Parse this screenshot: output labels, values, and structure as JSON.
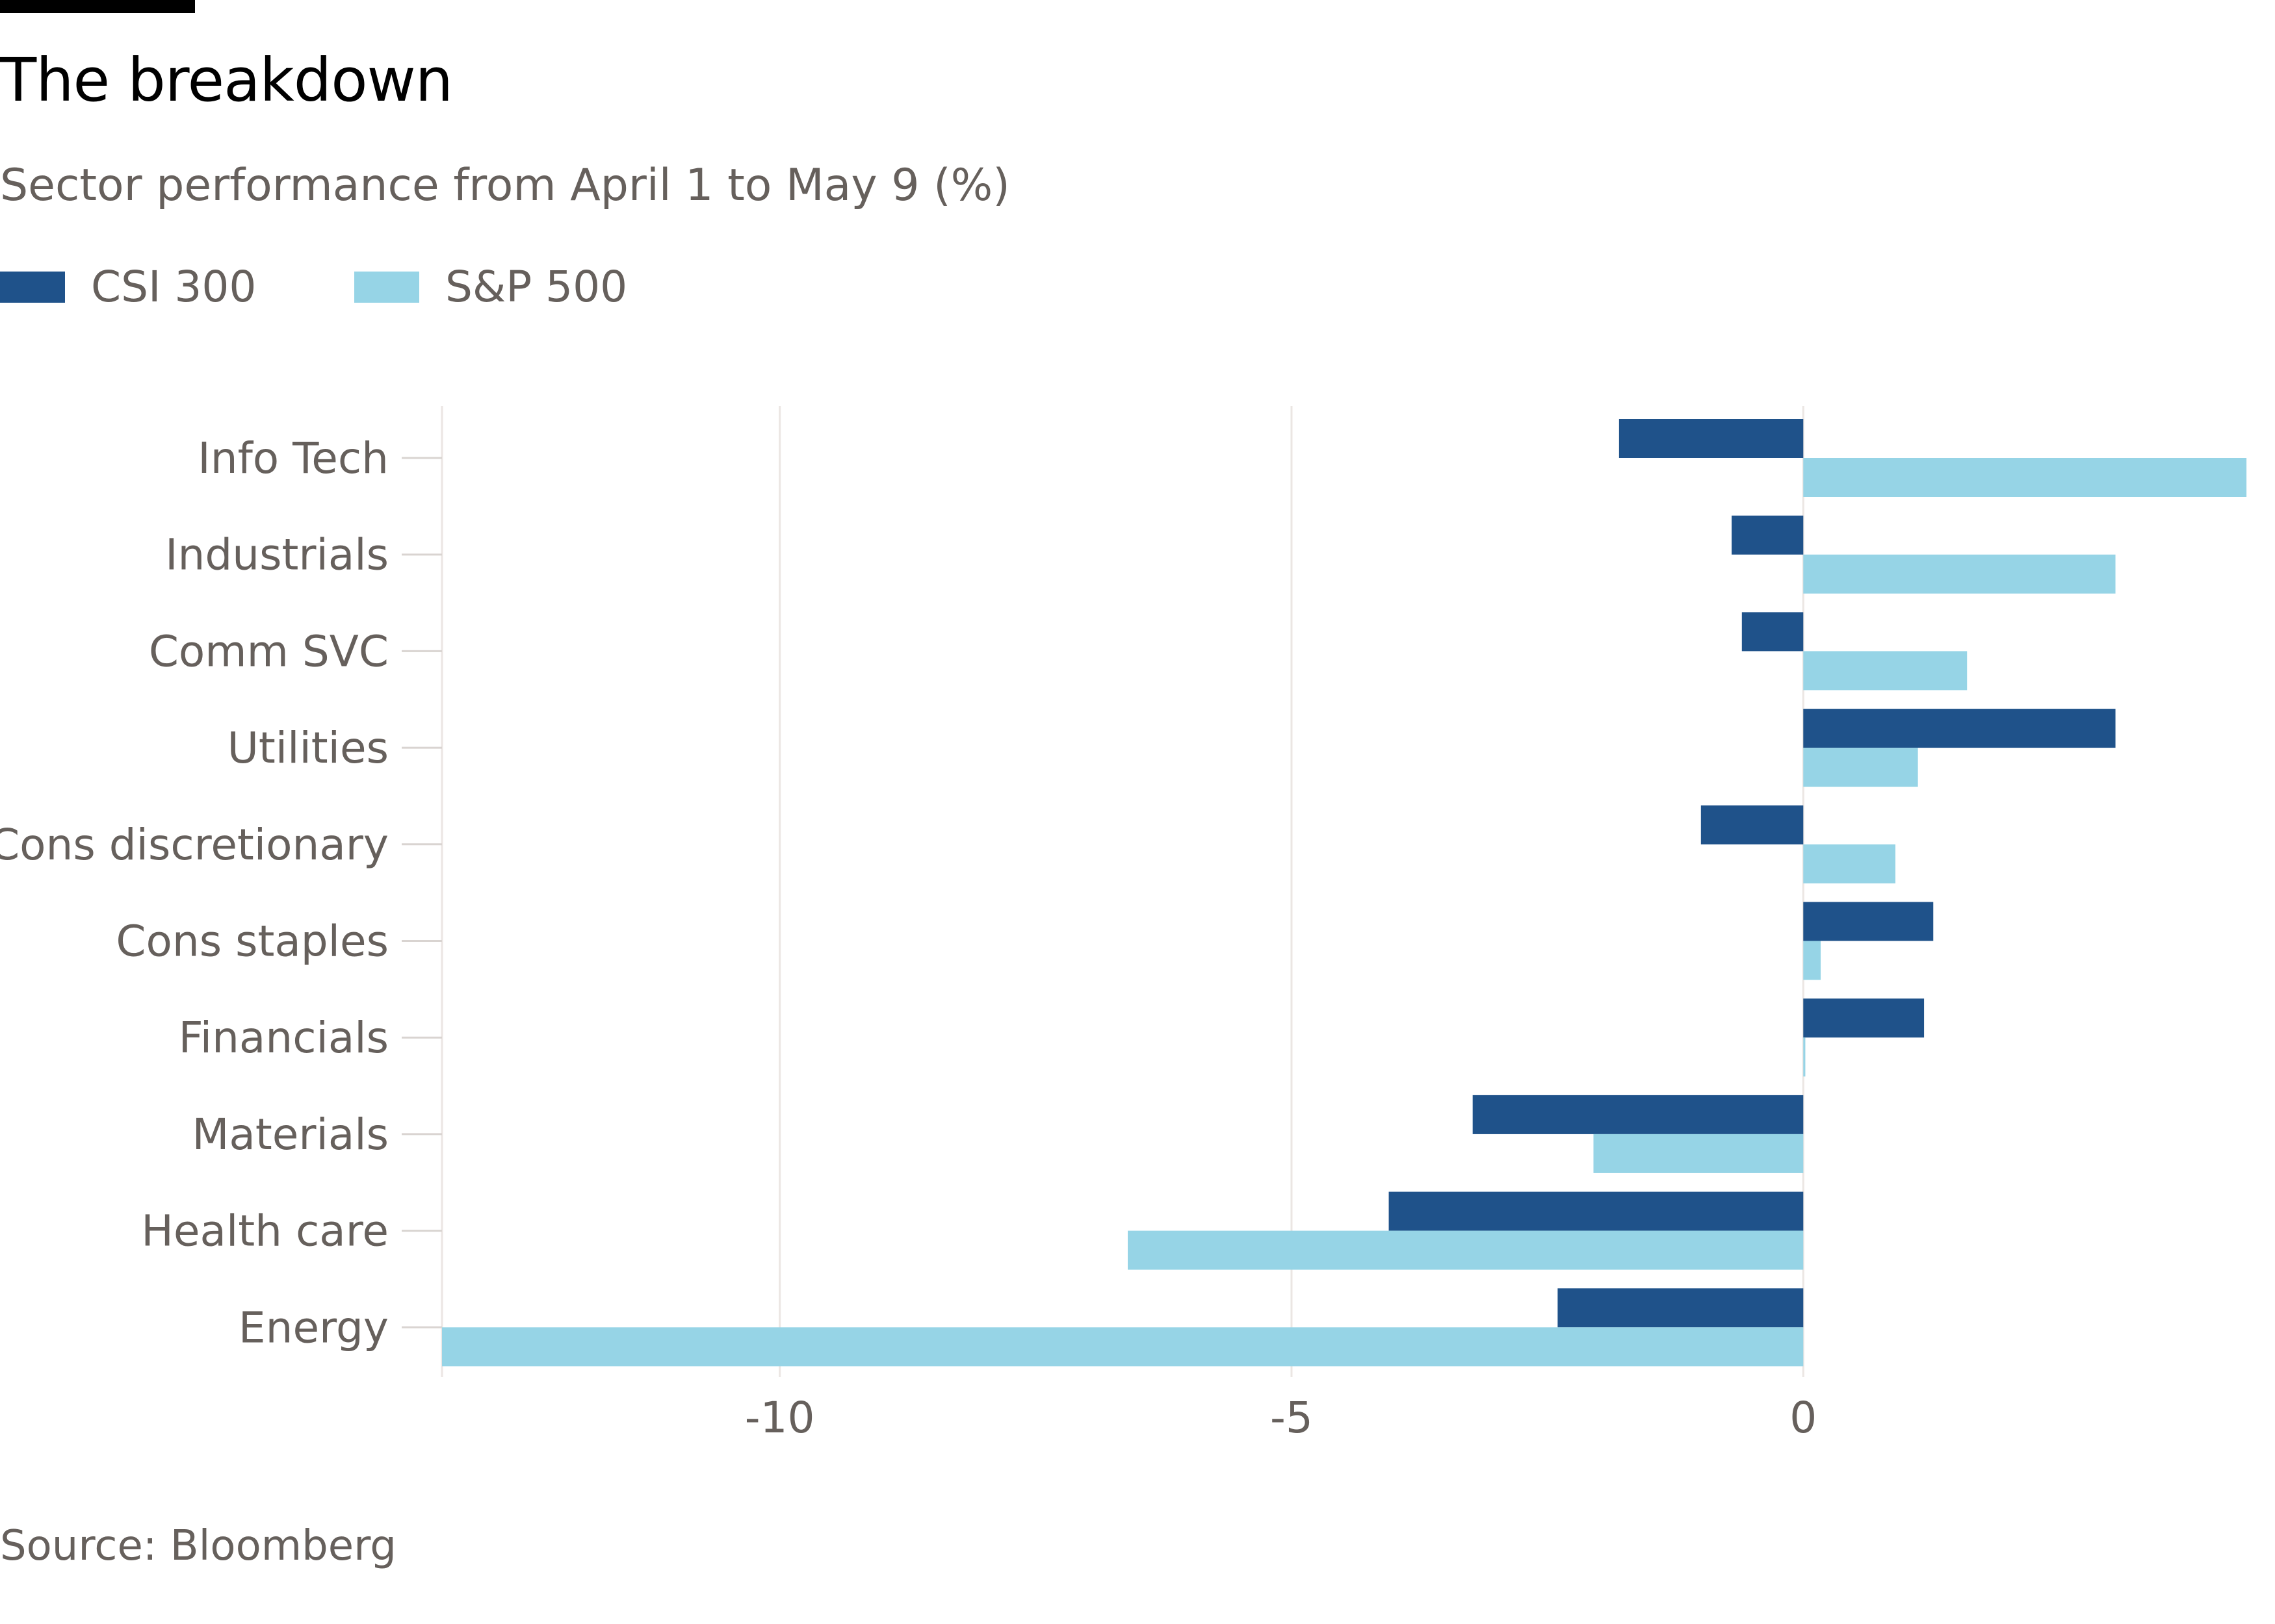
{
  "title": "The breakdown",
  "subtitle": "Sector performance from April 1 to May 9 (%)",
  "source": "Source: Bloomberg",
  "colors": {
    "csi": "#1f528a",
    "sp": "#96d4e6",
    "grid": "#ebe6e3",
    "tick": "#d9d4d1",
    "text": "#66605c",
    "title": "#000000"
  },
  "chart_data": {
    "type": "bar",
    "orientation": "horizontal",
    "categories": [
      "Info Tech",
      "Industrials",
      "Comm SVC",
      "Utilities",
      "Cons discretionary",
      "Cons staples",
      "Financials",
      "Materials",
      "Health care",
      "Energy"
    ],
    "series": [
      {
        "name": "CSI 300",
        "values": [
          -1.8,
          -0.7,
          -0.6,
          3.05,
          -1.0,
          1.27,
          1.18,
          -3.23,
          -4.05,
          -2.4
        ]
      },
      {
        "name": "S&P 500",
        "values": [
          4.33,
          3.05,
          1.6,
          1.12,
          0.9,
          0.17,
          0.02,
          -2.05,
          -6.6,
          -13.3
        ]
      }
    ],
    "xlim": [
      -13.3,
      4.45
    ],
    "x_ticks": [
      -10,
      -5,
      0
    ],
    "x_tick_labels": [
      "-10",
      "-5",
      "0"
    ],
    "xlabel": "",
    "ylabel": "",
    "grid": true,
    "legend_position": "top-left"
  }
}
